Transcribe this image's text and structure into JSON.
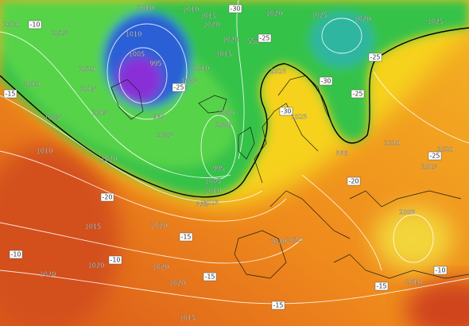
{
  "labels": [
    "1010",
    "-10",
    "1025",
    "1010",
    "1010",
    "1015",
    "1020",
    "-30",
    "1020",
    "1025",
    "1020",
    "1025",
    "1010",
    "1020",
    "552",
    "-25",
    "1015",
    "-25",
    "1005",
    "995",
    "1020",
    "1010",
    "1025",
    "-30",
    "1010",
    "1015",
    "1005",
    "-25",
    "-25",
    "995",
    "1015",
    "-15",
    "1005",
    "1000",
    "1000",
    "-30",
    "1025",
    "1010",
    "1005",
    "1020",
    "556",
    "1020",
    "1020",
    "995",
    "-25",
    "1015",
    "1005",
    "-20",
    "1010",
    "-20",
    "1015",
    "552",
    "1005",
    "1015",
    "1020",
    "-15",
    "1020",
    "1020",
    "-10",
    "-10",
    "1020",
    "1020",
    "1020",
    "-15",
    "1020",
    "1010",
    "-10",
    "-15",
    "1015",
    "-15"
  ]
}
